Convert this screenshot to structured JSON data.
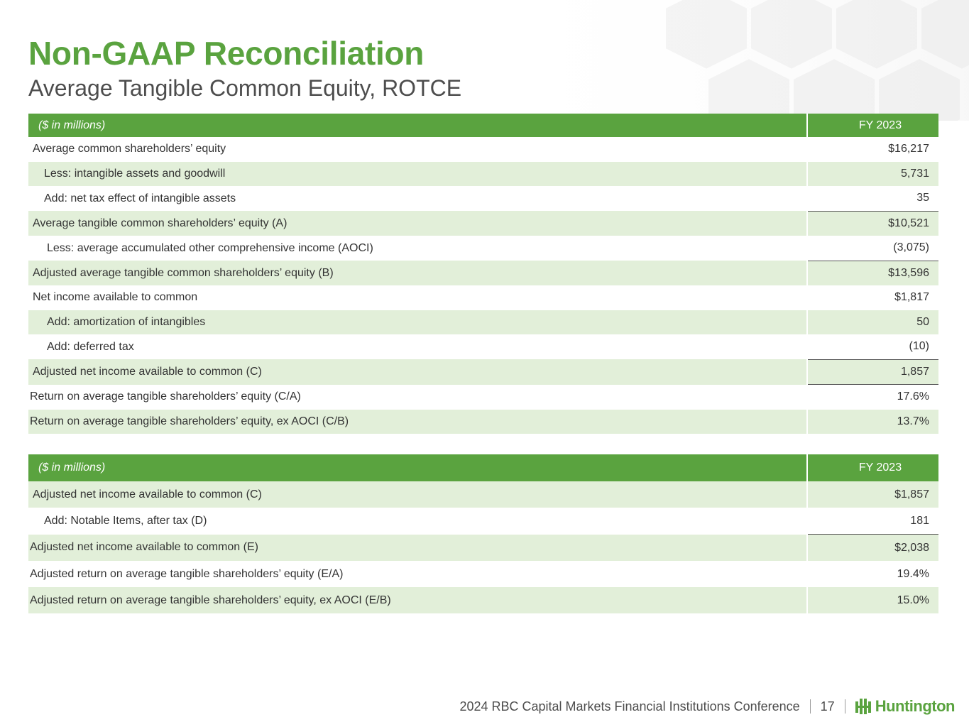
{
  "slide": {
    "title": "Non-GAAP Reconciliation",
    "subtitle": "Average Tangible Common Equity, ROTCE"
  },
  "colors": {
    "accent": "#5aa33f",
    "row_shade": "#e2efd9"
  },
  "table1": {
    "header_label": "($ in millions)",
    "header_value": "FY 2023",
    "rows": [
      {
        "label": "Average common shareholders’ equity",
        "value": "$16,217"
      },
      {
        "label": "Less: intangible assets and goodwill",
        "value": "5,731"
      },
      {
        "label": "Add: net tax effect of intangible assets",
        "value": "35"
      },
      {
        "label": "Average tangible common shareholders’ equity (A)",
        "value": "$10,521"
      },
      {
        "label": "Less: average accumulated other comprehensive income (AOCI)",
        "value": "(3,075)"
      },
      {
        "label": "Adjusted average tangible common shareholders’ equity (B)",
        "value": "$13,596"
      },
      {
        "label": "Net income available to common",
        "value": "$1,817"
      },
      {
        "label": "Add: amortization of intangibles",
        "value": "50"
      },
      {
        "label": "Add: deferred tax",
        "value": "(10)"
      },
      {
        "label": "Adjusted net income available to common (C)",
        "value": "1,857"
      },
      {
        "label": "Return on average tangible shareholders’ equity (C/A)",
        "value": "17.6%"
      },
      {
        "label": "Return on average tangible shareholders’ equity, ex AOCI (C/B)",
        "value": "13.7%"
      }
    ]
  },
  "table2": {
    "header_label": "($ in millions)",
    "header_value": "FY 2023",
    "rows": [
      {
        "label": "Adjusted net income available to common (C)",
        "value": "$1,857"
      },
      {
        "label": "Add: Notable Items, after tax (D)",
        "value": "181"
      },
      {
        "label": "Adjusted net income available to common (E)",
        "value": "$2,038"
      },
      {
        "label": "Adjusted return on average tangible shareholders’ equity (E/A)",
        "value": "19.4%"
      },
      {
        "label": "Adjusted return on average tangible shareholders’ equity, ex AOCI (E/B)",
        "value": "15.0%"
      }
    ]
  },
  "footer": {
    "conference": "2024 RBC Capital Markets Financial Institutions Conference",
    "page_number": "17",
    "logo_text": "Huntington",
    "logo_icon": "huntington-logo-icon"
  }
}
